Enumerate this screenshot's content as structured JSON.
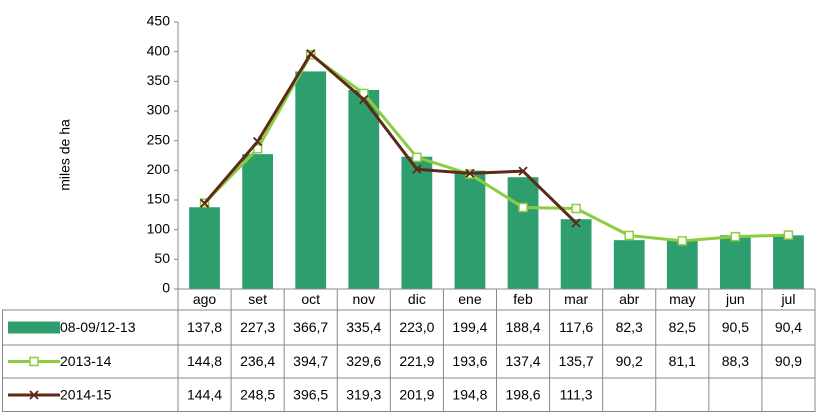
{
  "chart_data": {
    "type": "bar_line_table",
    "y_label": "miles de ha",
    "categories": [
      "ago",
      "set",
      "oct",
      "nov",
      "dic",
      "ene",
      "feb",
      "mar",
      "abr",
      "may",
      "jun",
      "jul"
    ],
    "ylim": [
      0,
      450
    ],
    "yticks": [
      0,
      50,
      100,
      150,
      200,
      250,
      300,
      350,
      400,
      450
    ],
    "series": [
      {
        "name": "08-09/12-13",
        "kind": "bar",
        "color": "#2f9e6f",
        "values": [
          137.8,
          227.3,
          366.7,
          335.4,
          223.0,
          199.4,
          188.4,
          117.6,
          82.3,
          82.5,
          90.5,
          90.4
        ],
        "value_labels": [
          "137,8",
          "227,3",
          "366,7",
          "335,4",
          "223,0",
          "199,4",
          "188,4",
          "117,6",
          "82,3",
          "82,5",
          "90,5",
          "90,4"
        ]
      },
      {
        "name": "2013-14",
        "kind": "line",
        "marker": "square",
        "color": "#8dcc3f",
        "values": [
          144.8,
          236.4,
          394.7,
          329.6,
          221.9,
          193.6,
          137.4,
          135.7,
          90.2,
          81.1,
          88.3,
          90.9
        ],
        "value_labels": [
          "144,8",
          "236,4",
          "394,7",
          "329,6",
          "221,9",
          "193,6",
          "137,4",
          "135,7",
          "90,2",
          "81,1",
          "88,3",
          "90,9"
        ]
      },
      {
        "name": "2014-15",
        "kind": "line",
        "marker": "x",
        "color": "#5c2a17",
        "values": [
          144.4,
          248.5,
          396.5,
          319.3,
          201.9,
          194.8,
          198.6,
          111.3,
          null,
          null,
          null,
          null
        ],
        "value_labels": [
          "144,4",
          "248,5",
          "396,5",
          "319,3",
          "201,9",
          "194,8",
          "198,6",
          "111,3",
          null,
          null,
          null,
          null
        ]
      }
    ]
  }
}
